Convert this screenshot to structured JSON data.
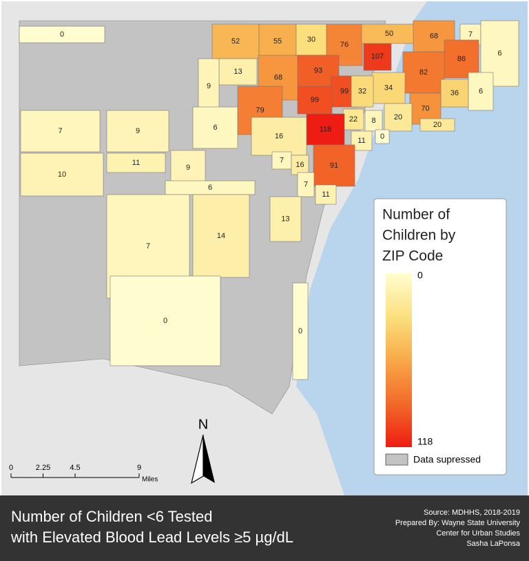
{
  "map": {
    "regions": [
      {
        "value": 0
      },
      {
        "value": 52
      },
      {
        "value": 55
      },
      {
        "value": 30
      },
      {
        "value": 76
      },
      {
        "value": 107
      },
      {
        "value": 50
      },
      {
        "value": 68
      },
      {
        "value": 7
      },
      {
        "value": 6
      },
      {
        "value": 86
      },
      {
        "value": 82
      },
      {
        "value": 13
      },
      {
        "value": 68
      },
      {
        "value": 93
      },
      {
        "value": 99
      },
      {
        "value": 34
      },
      {
        "value": 32
      },
      {
        "value": 36
      },
      {
        "value": 6
      },
      {
        "value": 9
      },
      {
        "value": 79
      },
      {
        "value": 99
      },
      {
        "value": 70
      },
      {
        "value": 22
      },
      {
        "value": 8
      },
      {
        "value": 20
      },
      {
        "value": 20
      },
      {
        "value": 0
      },
      {
        "value": 11
      },
      {
        "value": 118
      },
      {
        "value": 16
      },
      {
        "value": 7
      },
      {
        "value": 9
      },
      {
        "value": 6
      },
      {
        "value": 7
      },
      {
        "value": 16
      },
      {
        "value": 91
      },
      {
        "value": 11
      },
      {
        "value": 9
      },
      {
        "value": 10
      },
      {
        "value": 6
      },
      {
        "value": 7
      },
      {
        "value": 11
      },
      {
        "value": 13
      },
      {
        "value": 7
      },
      {
        "value": 14
      },
      {
        "value": 0
      },
      {
        "value": 0
      }
    ],
    "legend": {
      "title_lines": [
        "Number of",
        "Children by",
        "ZIP Code"
      ],
      "min": 0,
      "max": 118,
      "colors": [
        "#fffdd0",
        "#fbe07e",
        "#f8a947",
        "#f26a2a",
        "#ee1c12"
      ],
      "suppressed_label": "Data supressed",
      "suppressed_color": "#c3c3c3"
    },
    "scale_bar": {
      "ticks": [
        0,
        2.25,
        4.5,
        9
      ],
      "unit": "Miles"
    },
    "north": "N"
  },
  "footer": {
    "title_lines": [
      "Number of Children <6 Tested",
      "with Elevated Blood Lead Levels ≥5 µg/dL"
    ],
    "credits": [
      "Source: MDHHS, 2018-2019",
      "Prepared By: Wayne State University",
      "Center for Urban Studies",
      "Sasha LaPonsa"
    ]
  }
}
